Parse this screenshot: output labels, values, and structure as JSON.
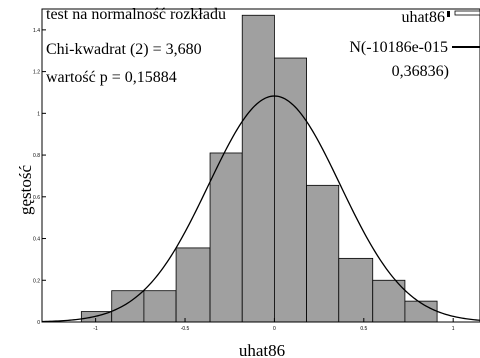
{
  "chart_data": {
    "type": "bar",
    "subtype": "histogram_with_normal_curve",
    "xlabel": "uhat86",
    "ylabel": "gęstość",
    "xlim": [
      -1.3,
      1.15
    ],
    "ylim": [
      0,
      1.5
    ],
    "x_ticks": [
      -1,
      -0.5,
      0,
      0.5,
      1
    ],
    "x_tick_labels": [
      "-1",
      "-0.5",
      "0",
      "0.5",
      "1"
    ],
    "y_ticks": [
      0,
      0.2,
      0.4,
      0.6,
      0.8,
      1.0,
      1.2,
      1.4
    ],
    "y_tick_labels": [
      "0",
      "0.2",
      "0.4",
      "0.6",
      "0.8",
      "1",
      "1.2",
      "1.4"
    ],
    "annotations": [
      "test na normalność rozkładu",
      "Chi-kwadrat (2) = 3,680",
      "wartość p = 0,15884"
    ],
    "legend": {
      "position": "top-right",
      "entries": [
        {
          "label": "uhat86",
          "style": "box"
        },
        {
          "label": "N(-10186e-015",
          "style": "line"
        },
        {
          "label": "0,36836)",
          "style": "none"
        }
      ]
    },
    "bins": [
      {
        "x0": -1.08,
        "x1": -0.91,
        "density": 0.05
      },
      {
        "x0": -0.91,
        "x1": -0.73,
        "density": 0.15
      },
      {
        "x0": -0.73,
        "x1": -0.55,
        "density": 0.15
      },
      {
        "x0": -0.55,
        "x1": -0.36,
        "density": 0.355
      },
      {
        "x0": -0.36,
        "x1": -0.18,
        "density": 0.81
      },
      {
        "x0": -0.18,
        "x1": 0.0,
        "density": 1.47
      },
      {
        "x0": 0.0,
        "x1": 0.18,
        "density": 1.265
      },
      {
        "x0": 0.18,
        "x1": 0.36,
        "density": 0.655
      },
      {
        "x0": 0.36,
        "x1": 0.55,
        "density": 0.305
      },
      {
        "x0": 0.55,
        "x1": 0.73,
        "density": 0.2
      },
      {
        "x0": 0.73,
        "x1": 0.91,
        "density": 0.1
      }
    ],
    "normal_curve": {
      "mean": 0.0,
      "sd": 0.36836
    },
    "colors": {
      "bar_fill": "#a0a0a0",
      "bar_stroke": "#000000",
      "curve": "#000000"
    },
    "grid": false
  }
}
